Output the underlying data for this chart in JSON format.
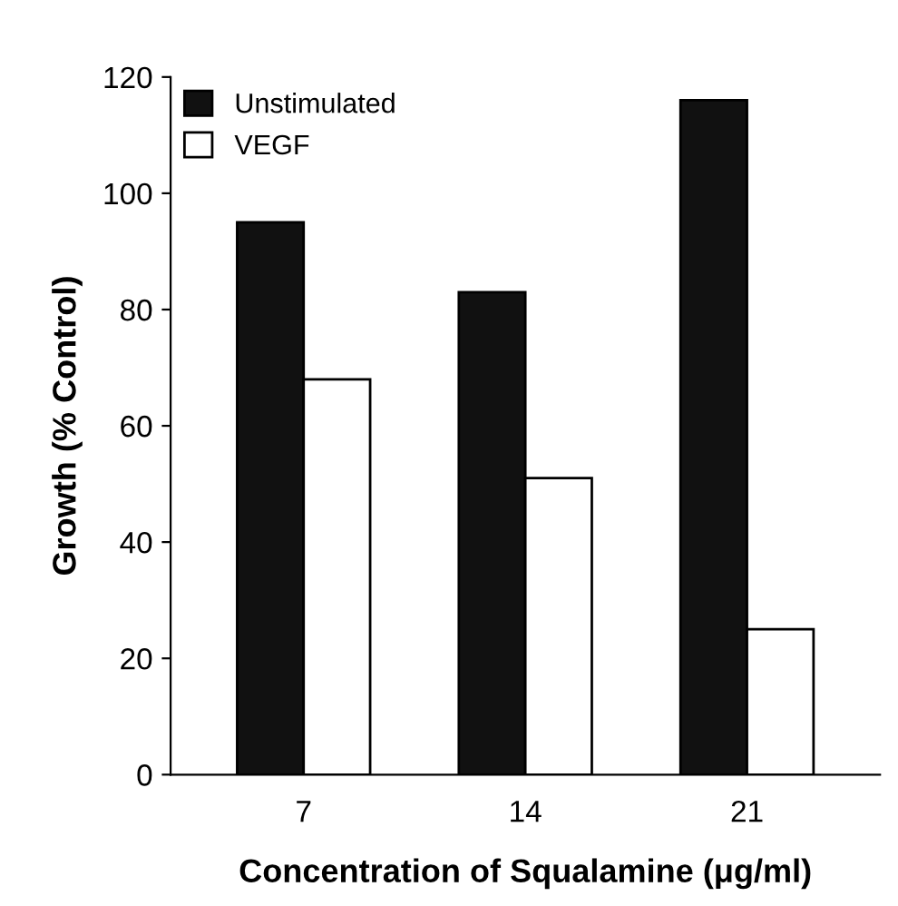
{
  "chart_data": {
    "type": "bar",
    "xlabel": "Concentration of Squalamine (μg/ml)",
    "ylabel": "Growth (% Control)",
    "categories": [
      "7",
      "14",
      "21"
    ],
    "series": [
      {
        "name": "Unstimulated",
        "color": "#111111",
        "values": [
          95,
          83,
          116
        ]
      },
      {
        "name": "VEGF",
        "color": "#ffffff",
        "values": [
          68,
          51,
          25
        ]
      }
    ],
    "ylim": [
      0,
      120
    ],
    "yticks": [
      0,
      20,
      40,
      60,
      80,
      100,
      120
    ],
    "grid": false,
    "legend": "top left"
  }
}
